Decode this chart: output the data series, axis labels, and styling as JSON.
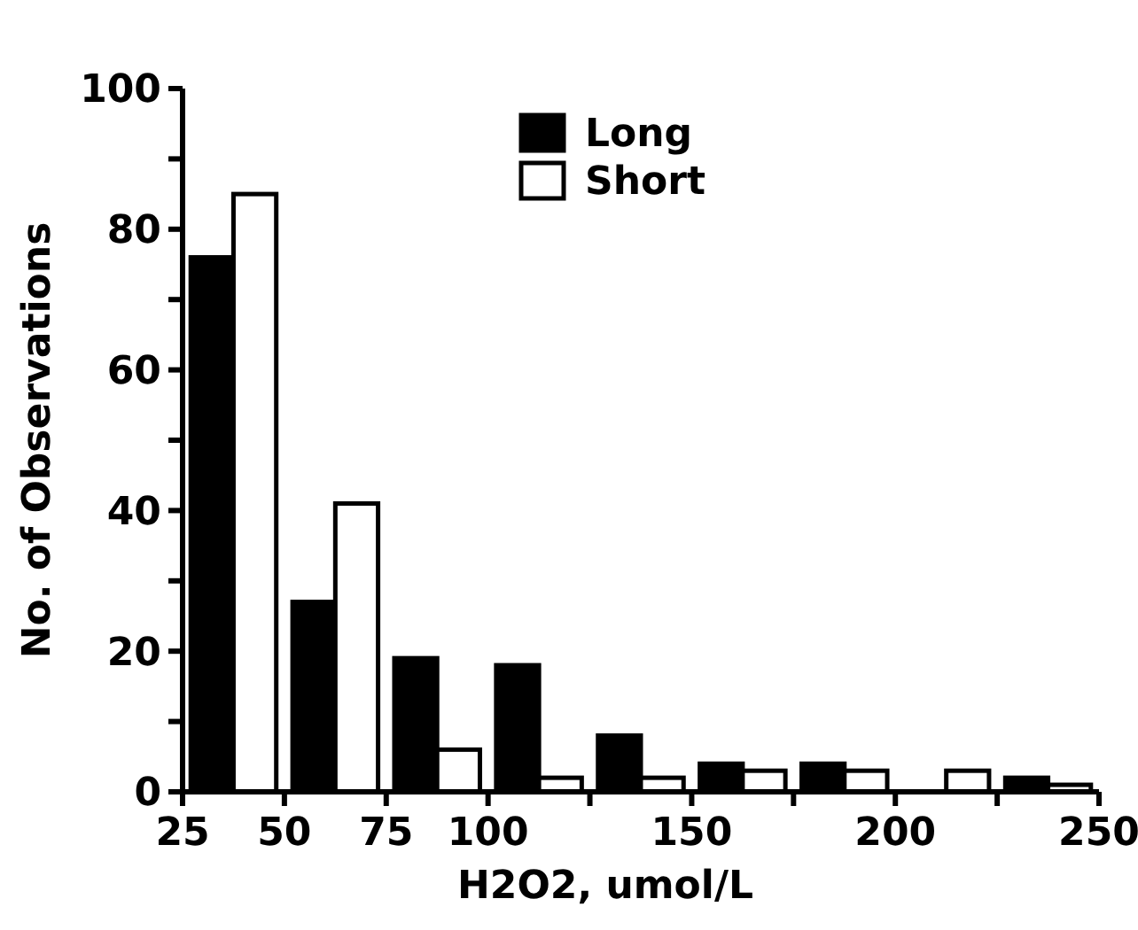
{
  "chart_data": {
    "type": "bar",
    "xlabel": "H2O2, umol/L",
    "ylabel": "No. of Observations",
    "x": [
      37.5,
      62.5,
      87.5,
      112.5,
      137.5,
      162.5,
      187.5,
      212.5,
      237.5
    ],
    "series": [
      {
        "name": "Long",
        "color": "#000000",
        "values": [
          76,
          27,
          19,
          18,
          8,
          4,
          4,
          0,
          2
        ]
      },
      {
        "name": "Short",
        "color": "#ffffff",
        "values": [
          85,
          41,
          6,
          2,
          2,
          3,
          3,
          3,
          1
        ]
      }
    ],
    "xlim": [
      25,
      250
    ],
    "xticks": [
      25,
      50,
      75,
      100,
      {
        "value": 125,
        "label": null
      },
      150,
      {
        "value": 175,
        "label": null
      },
      200,
      {
        "value": 225,
        "label": null
      },
      250
    ],
    "ylim": [
      0,
      100
    ],
    "yticks": [
      0,
      {
        "value": 10,
        "label": null
      },
      20,
      {
        "value": 30,
        "label": null
      },
      40,
      {
        "value": 50,
        "label": null
      },
      60,
      {
        "value": 70,
        "label": null
      },
      80,
      {
        "value": 90,
        "label": null
      },
      100
    ],
    "grid": false,
    "legend": "top right"
  }
}
